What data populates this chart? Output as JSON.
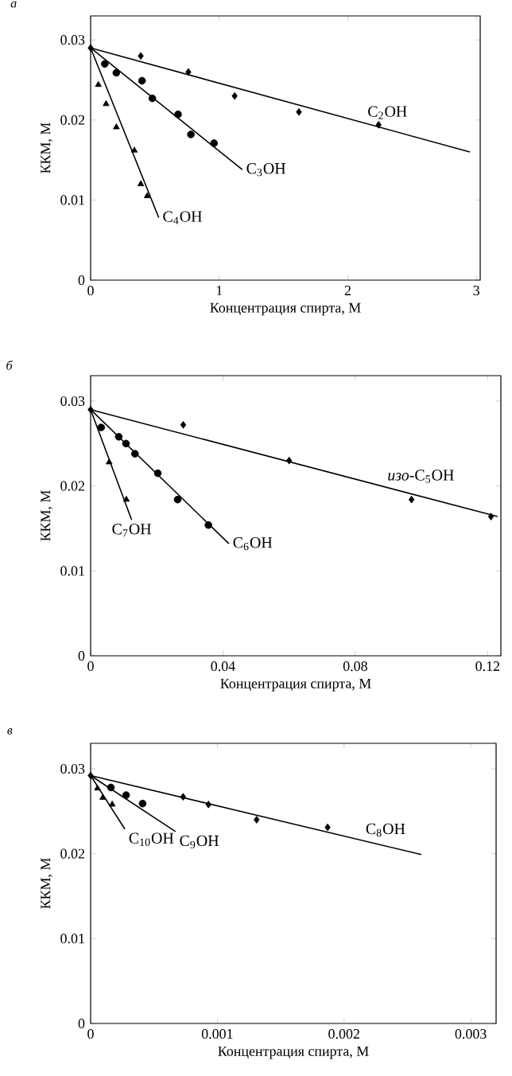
{
  "chart_data": [
    {
      "type": "scatter",
      "title": "а",
      "xlabel": "Концентрация спирта, М",
      "ylabel": "ККМ, М",
      "xlim": [
        0,
        3.03
      ],
      "ylim": [
        0,
        0.033
      ],
      "xticks": [
        0,
        1,
        2,
        3
      ],
      "yticks": [
        0,
        0.01,
        0.02,
        0.03
      ],
      "series": [
        {
          "marker": "diamond",
          "color": "#000000",
          "x": [
            0,
            0.39,
            0.76,
            1.12,
            1.62,
            2.24
          ],
          "values": [
            0.029,
            0.028,
            0.026,
            0.023,
            0.021,
            0.0194
          ]
        },
        {
          "marker": "circle",
          "color": "#000000",
          "x": [
            0.11,
            0.2,
            0.4,
            0.48,
            0.68,
            0.78,
            0.96
          ],
          "values": [
            0.027,
            0.0259,
            0.0249,
            0.0227,
            0.0207,
            0.0182,
            0.0171
          ]
        },
        {
          "marker": "triangle",
          "color": "#000000",
          "x": [
            0.06,
            0.12,
            0.2,
            0.34,
            0.39,
            0.44
          ],
          "values": [
            0.0244,
            0.022,
            0.0191,
            0.0162,
            0.012,
            0.0105
          ]
        },
        {
          "type": "line",
          "name": "C$_{2}$OH",
          "color": "#000000",
          "x": [
            0,
            2.95
          ],
          "values": [
            0.029,
            0.016
          ]
        },
        {
          "type": "line",
          "name": "C$_{3}$OH",
          "color": "#000000",
          "x": [
            0,
            1.18
          ],
          "values": [
            0.029,
            0.0138
          ]
        },
        {
          "type": "line",
          "name": "C$_{4}$OH",
          "color": "#000000",
          "x": [
            0,
            0.53
          ],
          "values": [
            0.029,
            0.0078
          ]
        }
      ]
    },
    {
      "type": "scatter",
      "title": "б",
      "xlabel": "Концентрация спирта, М",
      "ylabel": "ККМ, М",
      "xlim": [
        0,
        0.124
      ],
      "ylim": [
        0,
        0.033
      ],
      "xticks": [
        0,
        0.04,
        0.08,
        0.12
      ],
      "yticks": [
        0,
        0.01,
        0.02,
        0.03
      ],
      "series": [
        {
          "marker": "diamond",
          "color": "#000000",
          "x": [
            0,
            0.028,
            0.06,
            0.097,
            0.121
          ],
          "values": [
            0.029,
            0.0272,
            0.023,
            0.0184,
            0.0164
          ]
        },
        {
          "marker": "circle",
          "color": "#000000",
          "x": [
            0.0032,
            0.0085,
            0.0107,
            0.0134,
            0.0203,
            0.0263,
            0.0356
          ],
          "values": [
            0.0269,
            0.0258,
            0.025,
            0.0238,
            0.0215,
            0.0184,
            0.0154
          ]
        },
        {
          "marker": "triangle",
          "color": "#000000",
          "x": [
            0.0056,
            0.0108
          ],
          "values": [
            0.0228,
            0.0184
          ]
        },
        {
          "type": "line",
          "name": "*изо*-C$_{5}$OH",
          "color": "#000000",
          "x": [
            0,
            0.123
          ],
          "values": [
            0.029,
            0.0164
          ]
        },
        {
          "type": "line",
          "name": "C$_{6}$OH",
          "color": "#000000",
          "x": [
            0,
            0.0418
          ],
          "values": [
            0.029,
            0.0132
          ]
        },
        {
          "type": "line",
          "name": "C$_{7}$OH",
          "color": "#000000",
          "x": [
            0,
            0.0124
          ],
          "values": [
            0.029,
            0.016
          ]
        }
      ]
    },
    {
      "type": "scatter",
      "title": "в",
      "xlabel": "Концентрация спирта, М",
      "ylabel": "ККМ, М",
      "xlim": [
        0,
        0.0032
      ],
      "ylim": [
        0,
        0.033
      ],
      "xticks": [
        0,
        0.001,
        0.002,
        0.003
      ],
      "yticks": [
        0,
        0.01,
        0.02,
        0.03
      ],
      "series": [
        {
          "marker": "diamond",
          "color": "#000000",
          "x": [
            0,
            0.00073,
            0.00093,
            0.00131,
            0.00187
          ],
          "values": [
            0.0292,
            0.0267,
            0.0258,
            0.024,
            0.0231
          ]
        },
        {
          "marker": "circle",
          "color": "#000000",
          "x": [
            0.00016,
            0.00028,
            0.00041
          ],
          "values": [
            0.0278,
            0.0269,
            0.0259
          ]
        },
        {
          "marker": "triangle",
          "color": "#000000",
          "x": [
            5.4e-05,
            9.6e-05,
            0.00017
          ],
          "values": [
            0.0277,
            0.0266,
            0.0258
          ]
        },
        {
          "type": "line",
          "name": "C$_{8}$OH",
          "color": "#000000",
          "x": [
            0,
            0.00261
          ],
          "values": [
            0.0292,
            0.0199
          ]
        },
        {
          "type": "line",
          "name": "C$_{9}$OH",
          "color": "#000000",
          "x": [
            0,
            0.00067
          ],
          "values": [
            0.0292,
            0.0226
          ]
        },
        {
          "type": "line",
          "name": "C$_{10}$OH",
          "color": "#000000",
          "x": [
            0,
            0.00027
          ],
          "values": [
            0.0292,
            0.0229
          ]
        }
      ]
    }
  ]
}
